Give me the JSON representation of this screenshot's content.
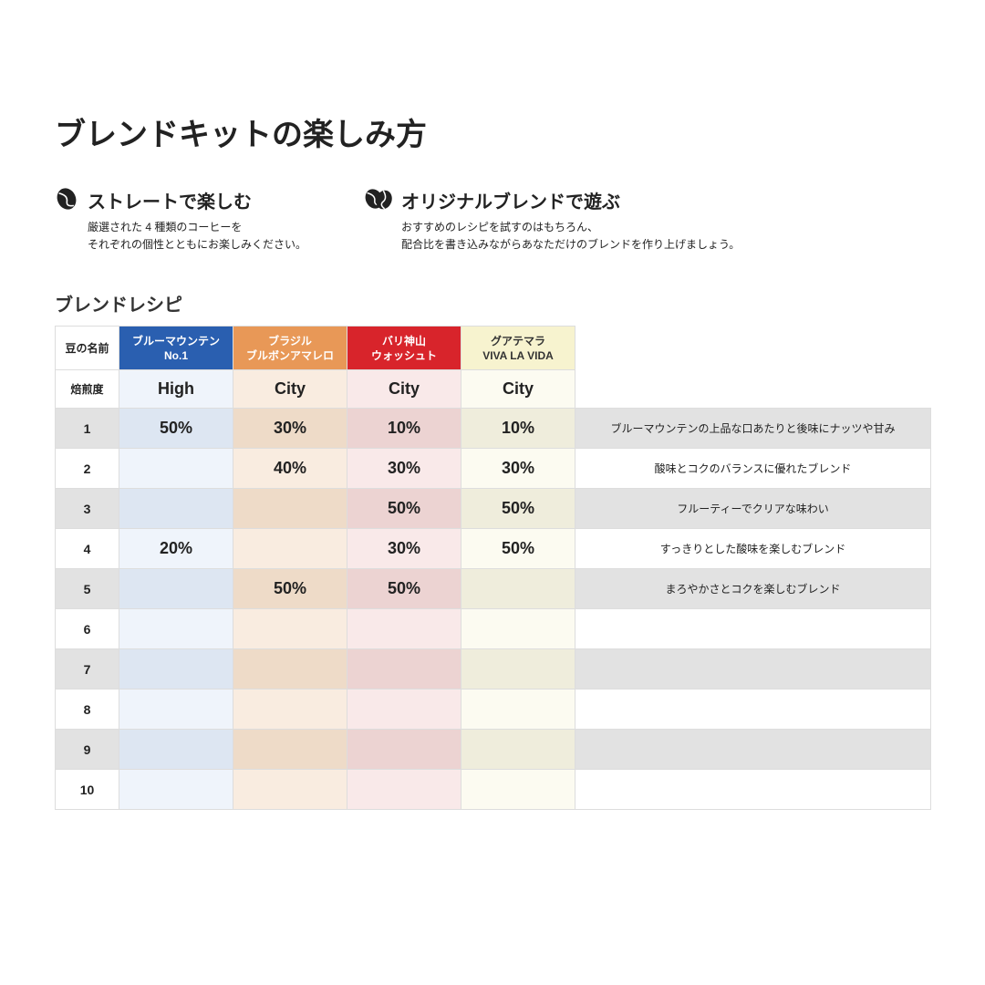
{
  "title": "ブレンドキットの楽しみ方",
  "intro": {
    "left": {
      "heading": "ストレートで楽しむ",
      "desc": "厳選された 4 種類のコーヒーを\nそれぞれの個性とともにお楽しみください。"
    },
    "right": {
      "heading": "オリジナルブレンドで遊ぶ",
      "desc": "おすすめのレシピを試すのはもちろん、\n配合比を書き込みながらあなただけのブレンドを作り上げましょう。"
    }
  },
  "recipe": {
    "title": "ブレンドレシピ",
    "corner_label": "豆の名前",
    "roast_label": "焙煎度",
    "beans": [
      {
        "name_l1": "ブルーマウンテン",
        "name_l2": "No.1",
        "header_bg": "#2a5fb0",
        "header_text": "#ffffff",
        "tint_even": "#eff4fb",
        "tint_odd": "#dde6f2",
        "roast": "High"
      },
      {
        "name_l1": "ブラジル",
        "name_l2": "ブルボンアマレロ",
        "header_bg": "#e89857",
        "header_text": "#ffffff",
        "tint_even": "#f9ece0",
        "tint_odd": "#eedbc8",
        "roast": "City"
      },
      {
        "name_l1": "バリ神山",
        "name_l2": "ウォッシュト",
        "header_bg": "#d8242b",
        "header_text": "#ffffff",
        "tint_even": "#f9e9e9",
        "tint_odd": "#ecd3d2",
        "roast": "City"
      },
      {
        "name_l1": "グアテマラ",
        "name_l2": "VIVA LA VIDA",
        "header_bg": "#f7f3cf",
        "header_text": "#333333",
        "tint_even": "#fcfbf1",
        "tint_odd": "#efeddc",
        "roast": "City"
      }
    ],
    "row_bg_even": "#ffffff",
    "row_bg_odd": "#e2e2e2",
    "rows": [
      {
        "n": "1",
        "pct": [
          "50%",
          "30%",
          "10%",
          "10%"
        ],
        "desc": "ブルーマウンテンの上品な口あたりと後味にナッツや甘み"
      },
      {
        "n": "2",
        "pct": [
          "",
          "40%",
          "30%",
          "30%"
        ],
        "desc": "酸味とコクのバランスに優れたブレンド"
      },
      {
        "n": "3",
        "pct": [
          "",
          "",
          "50%",
          "50%"
        ],
        "desc": "フルーティーでクリアな味わい"
      },
      {
        "n": "4",
        "pct": [
          "20%",
          "",
          "30%",
          "50%"
        ],
        "desc": "すっきりとした酸味を楽しむブレンド"
      },
      {
        "n": "5",
        "pct": [
          "",
          "50%",
          "50%",
          ""
        ],
        "desc": "まろやかさとコクを楽しむブレンド"
      },
      {
        "n": "6",
        "pct": [
          "",
          "",
          "",
          ""
        ],
        "desc": ""
      },
      {
        "n": "7",
        "pct": [
          "",
          "",
          "",
          ""
        ],
        "desc": ""
      },
      {
        "n": "8",
        "pct": [
          "",
          "",
          "",
          ""
        ],
        "desc": ""
      },
      {
        "n": "9",
        "pct": [
          "",
          "",
          "",
          ""
        ],
        "desc": ""
      },
      {
        "n": "10",
        "pct": [
          "",
          "",
          "",
          ""
        ],
        "desc": ""
      }
    ]
  }
}
